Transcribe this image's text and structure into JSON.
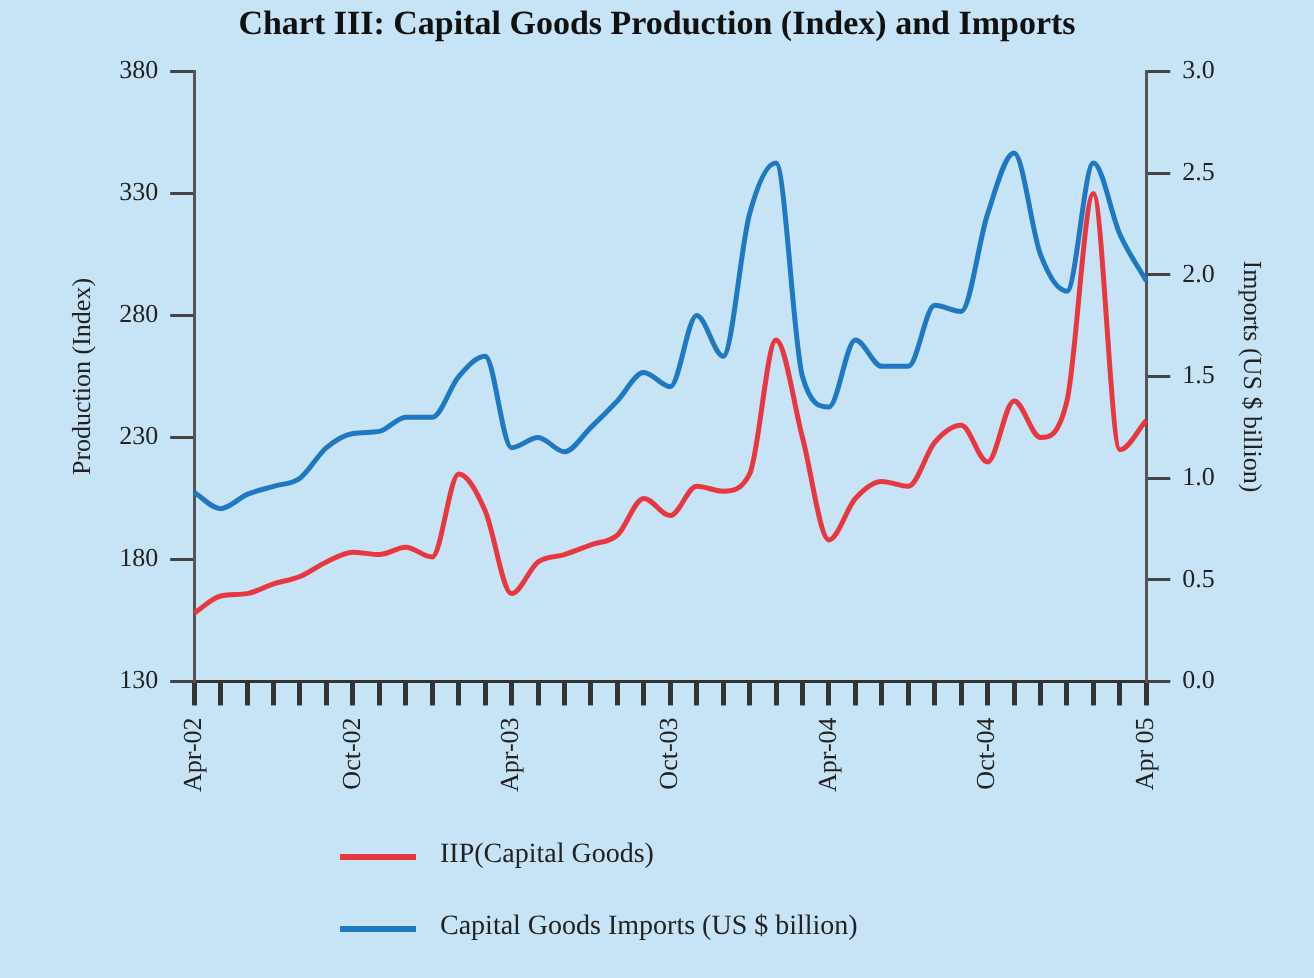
{
  "chart_data": {
    "type": "line",
    "title": "Chart III: Capital Goods Production (Index) and Imports",
    "ylabel": "Production (Index)",
    "y2label": "Imports (US $ billion)",
    "categories": [
      "Apr-02",
      null,
      null,
      null,
      null,
      null,
      "Oct-02",
      null,
      null,
      null,
      null,
      null,
      "Apr-03",
      null,
      null,
      null,
      null,
      null,
      "Oct-03",
      null,
      null,
      null,
      null,
      null,
      "Apr-04",
      null,
      null,
      null,
      null,
      null,
      "Oct-04",
      null,
      null,
      null,
      null,
      null,
      "Apr 05"
    ],
    "series": [
      {
        "name": "IIP(Capital Goods)",
        "color": "#e8373f",
        "values": [
          158,
          165,
          166,
          170,
          173,
          179,
          183,
          182,
          185,
          181,
          215,
          200,
          166,
          179,
          182,
          186,
          190,
          205,
          198,
          210,
          208,
          215,
          270,
          230,
          188,
          205,
          212,
          210,
          228,
          235,
          220,
          245,
          230,
          245,
          330,
          225,
          237
        ]
      },
      {
        "name": "Capital Goods Imports (US $ billion)",
        "color": "#1f78c1",
        "axis": "y2",
        "values": [
          0.93,
          0.85,
          0.92,
          0.96,
          1.0,
          1.15,
          1.22,
          1.23,
          1.3,
          1.3,
          1.5,
          1.6,
          1.15,
          1.2,
          1.13,
          1.25,
          1.38,
          1.52,
          1.45,
          1.8,
          1.6,
          2.3,
          2.55,
          1.5,
          1.35,
          1.68,
          1.55,
          1.55,
          1.85,
          1.82,
          2.3,
          2.6,
          2.1,
          1.92,
          2.55,
          2.2,
          1.97
        ]
      }
    ],
    "ylim": [
      130,
      380
    ],
    "yticks": [
      130,
      180,
      230,
      280,
      330,
      380
    ],
    "y2lim": [
      0,
      3
    ],
    "y2ticks": [
      {
        "value": 0,
        "label": "0.0"
      },
      0.5,
      {
        "value": 1,
        "label": "1.0"
      },
      1.5,
      {
        "value": 2,
        "label": "2.0"
      },
      2.5,
      {
        "value": 3,
        "label": "3.0"
      }
    ],
    "grid": false,
    "legend": "bottom",
    "marker": "none",
    "line_style": "solid"
  }
}
